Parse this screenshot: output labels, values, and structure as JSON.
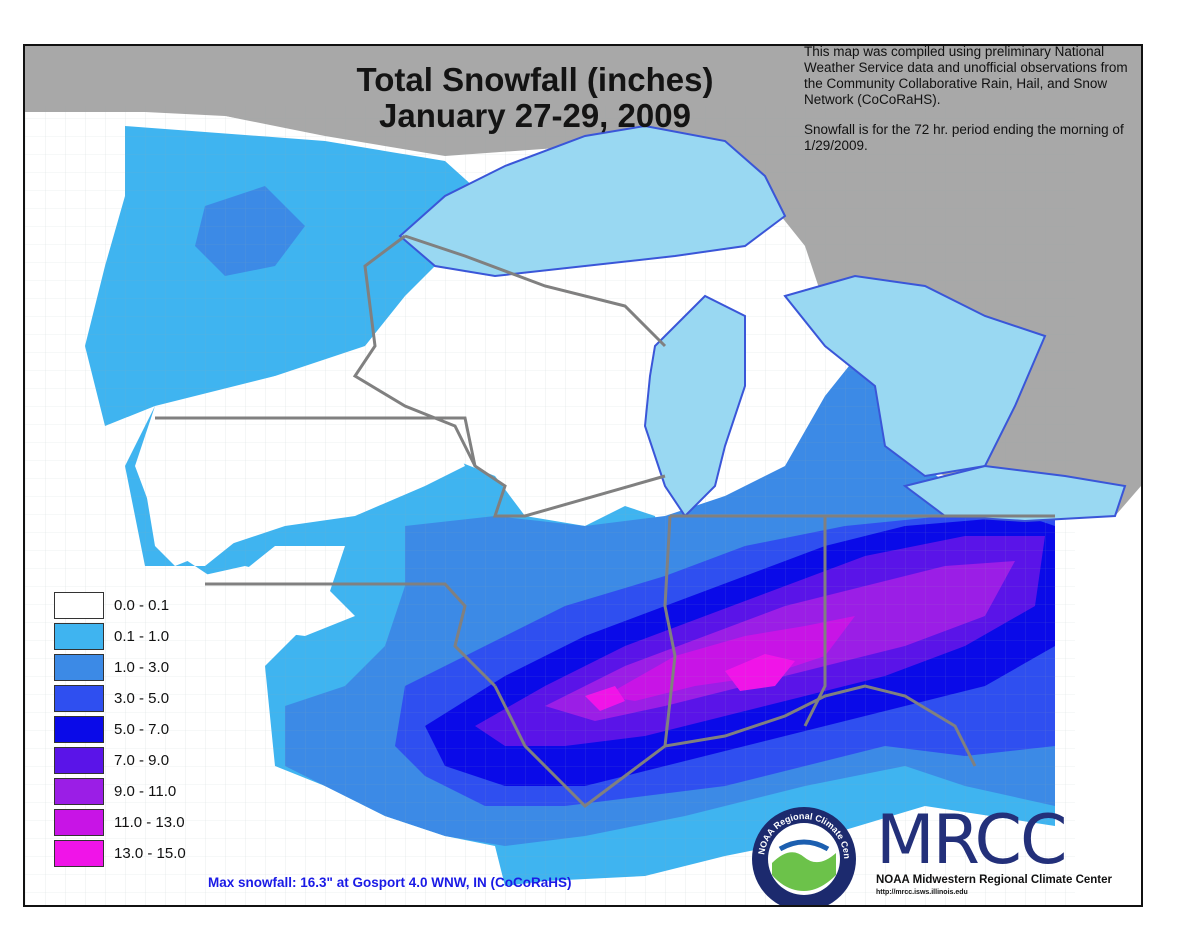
{
  "title": {
    "line1": "Total Snowfall (inches)",
    "line2": "January 27-29, 2009"
  },
  "note": {
    "para1": "This map was compiled using preliminary National Weather Service data and unofficial observations from the Community Collaborative Rain, Hail, and Snow Network (CoCoRaHS).",
    "para2": "Snowfall is for the 72 hr. period ending the morning of 1/29/2009."
  },
  "legend": [
    {
      "label": "0.0 - 0.1",
      "color": "#ffffff"
    },
    {
      "label": "0.1 - 1.0",
      "color": "#3fb4f0"
    },
    {
      "label": "1.0 - 3.0",
      "color": "#3c8ae6"
    },
    {
      "label": "3.0 - 5.0",
      "color": "#2f4ff0"
    },
    {
      "label": "5.0 - 7.0",
      "color": "#0a0ae8"
    },
    {
      "label": "7.0 - 9.0",
      "color": "#5a14e8"
    },
    {
      "label": "9.0 - 11.0",
      "color": "#9b1ee6"
    },
    {
      "label": "11.0 - 13.0",
      "color": "#c814e6"
    },
    {
      "label": "13.0 - 15.0",
      "color": "#f014e8"
    }
  ],
  "max_snowfall_note": "Max snowfall: 16.3\" at Gosport 4.0 WNW, IN (CoCoRaHS)",
  "logo": {
    "ring_text": "NOAA Regional Climate Centers",
    "wordmark": "MRCC",
    "org_name": "NOAA Midwestern Regional Climate Center",
    "url": "http://mrcc.isws.illinois.edu"
  },
  "colors": {
    "lake": "#99d8f2",
    "outside_land": "#a8a8a8",
    "state_border": "#808080",
    "coast": "#3a56d8",
    "max_note": "#1a1ae6"
  }
}
